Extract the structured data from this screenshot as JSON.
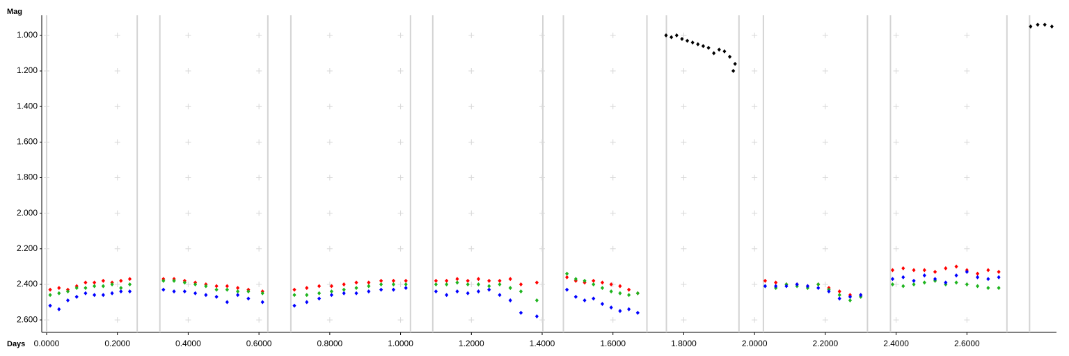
{
  "chart_data": {
    "type": "scatter",
    "x_label": "Days",
    "y_label": "Mag",
    "xlim": [
      -0.0137,
      2.853
    ],
    "ylim": [
      0.887,
      2.67
    ],
    "y_inverted": true,
    "grid": true,
    "xticks": [
      {
        "value": 0,
        "label": "0.0000"
      },
      {
        "value": 0.2,
        "label": "0.2000"
      },
      {
        "value": 0.4,
        "label": "0.4000"
      },
      {
        "value": 0.6,
        "label": "0.6000"
      },
      {
        "value": 0.8,
        "label": "0.8000"
      },
      {
        "value": 1.0,
        "label": "1.0000"
      },
      {
        "value": 1.2,
        "label": "1.2000"
      },
      {
        "value": 1.4,
        "label": "1.4000"
      },
      {
        "value": 1.6,
        "label": "1.6000"
      },
      {
        "value": 1.8,
        "label": "1.8000"
      },
      {
        "value": 2.0,
        "label": "2.0000"
      },
      {
        "value": 2.2,
        "label": "2.2000"
      },
      {
        "value": 2.4,
        "label": "2.4000"
      },
      {
        "value": 2.6,
        "label": "2.6000"
      }
    ],
    "yticks": [
      {
        "value": 1.0,
        "label": "1.000"
      },
      {
        "value": 1.2,
        "label": "1.200"
      },
      {
        "value": 1.4,
        "label": "1.400"
      },
      {
        "value": 1.6,
        "label": "1.600"
      },
      {
        "value": 1.8,
        "label": "1.800"
      },
      {
        "value": 2.0,
        "label": "2.000"
      },
      {
        "value": 2.2,
        "label": "2.200"
      },
      {
        "value": 2.4,
        "label": "2.400"
      },
      {
        "value": 2.6,
        "label": "2.600"
      }
    ],
    "vlines": [
      0,
      0.256,
      0.32,
      0.625,
      0.69,
      1.028,
      1.091,
      1.402,
      1.46,
      1.696,
      1.751,
      1.956,
      2.025,
      2.319,
      2.384,
      2.713,
      2.777
    ],
    "vline_color": "#d3d3d3",
    "series": [
      {
        "color": "#ff0000",
        "x": [
          0.01,
          0.035,
          0.06,
          0.085,
          0.11,
          0.135,
          0.16,
          0.185,
          0.21,
          0.235,
          0.33,
          0.36,
          0.39,
          0.42,
          0.45,
          0.48,
          0.51,
          0.54,
          0.57,
          0.61,
          0.7,
          0.735,
          0.77,
          0.805,
          0.84,
          0.875,
          0.91,
          0.945,
          0.98,
          1.015,
          1.1,
          1.13,
          1.16,
          1.19,
          1.22,
          1.25,
          1.28,
          1.31,
          1.34,
          1.385,
          1.47,
          1.495,
          1.52,
          1.545,
          1.57,
          1.595,
          1.62,
          1.645,
          1.67,
          2.03,
          2.06,
          2.09,
          2.12,
          2.15,
          2.18,
          2.21,
          2.24,
          2.27,
          2.3,
          2.39,
          2.42,
          2.45,
          2.48,
          2.51,
          2.54,
          2.57,
          2.6,
          2.63,
          2.66,
          2.69
        ],
        "values": [
          2.43,
          2.42,
          2.43,
          2.41,
          2.39,
          2.39,
          2.38,
          2.39,
          2.38,
          2.37,
          2.37,
          2.37,
          2.38,
          2.39,
          2.4,
          2.41,
          2.41,
          2.42,
          2.43,
          2.44,
          2.43,
          2.42,
          2.41,
          2.41,
          2.4,
          2.39,
          2.39,
          2.38,
          2.38,
          2.38,
          2.38,
          2.38,
          2.37,
          2.38,
          2.37,
          2.38,
          2.38,
          2.37,
          2.4,
          2.39,
          2.36,
          2.38,
          2.39,
          2.38,
          2.39,
          2.4,
          2.41,
          2.43,
          2.45,
          2.38,
          2.39,
          2.4,
          2.4,
          2.41,
          2.4,
          2.42,
          2.44,
          2.46,
          2.46,
          2.32,
          2.31,
          2.32,
          2.32,
          2.33,
          2.31,
          2.3,
          2.32,
          2.34,
          2.32,
          2.33
        ]
      },
      {
        "color": "#1fb41f",
        "x": [
          0.01,
          0.035,
          0.06,
          0.085,
          0.11,
          0.135,
          0.16,
          0.185,
          0.21,
          0.235,
          0.33,
          0.36,
          0.39,
          0.42,
          0.45,
          0.48,
          0.51,
          0.54,
          0.57,
          0.61,
          0.7,
          0.735,
          0.77,
          0.805,
          0.84,
          0.875,
          0.91,
          0.945,
          0.98,
          1.015,
          1.1,
          1.13,
          1.16,
          1.19,
          1.22,
          1.25,
          1.28,
          1.31,
          1.34,
          1.385,
          1.47,
          1.495,
          1.52,
          1.545,
          1.57,
          1.595,
          1.62,
          1.645,
          1.67,
          2.03,
          2.06,
          2.09,
          2.12,
          2.15,
          2.18,
          2.21,
          2.24,
          2.27,
          2.3,
          2.39,
          2.42,
          2.45,
          2.48,
          2.51,
          2.54,
          2.57,
          2.6,
          2.63,
          2.66,
          2.69
        ],
        "values": [
          2.46,
          2.45,
          2.44,
          2.42,
          2.42,
          2.41,
          2.41,
          2.4,
          2.42,
          2.4,
          2.38,
          2.38,
          2.39,
          2.4,
          2.41,
          2.43,
          2.43,
          2.44,
          2.44,
          2.45,
          2.46,
          2.46,
          2.45,
          2.44,
          2.43,
          2.42,
          2.41,
          2.4,
          2.4,
          2.4,
          2.4,
          2.4,
          2.39,
          2.4,
          2.4,
          2.41,
          2.4,
          2.42,
          2.44,
          2.49,
          2.34,
          2.37,
          2.38,
          2.4,
          2.42,
          2.44,
          2.45,
          2.46,
          2.45,
          2.41,
          2.42,
          2.4,
          2.41,
          2.42,
          2.4,
          2.43,
          2.46,
          2.49,
          2.47,
          2.4,
          2.41,
          2.4,
          2.39,
          2.38,
          2.4,
          2.39,
          2.4,
          2.41,
          2.42,
          2.42
        ]
      },
      {
        "color": "#0000ff",
        "x": [
          0.01,
          0.035,
          0.06,
          0.085,
          0.11,
          0.135,
          0.16,
          0.185,
          0.21,
          0.235,
          0.33,
          0.36,
          0.39,
          0.42,
          0.45,
          0.48,
          0.51,
          0.54,
          0.57,
          0.61,
          0.7,
          0.735,
          0.77,
          0.805,
          0.84,
          0.875,
          0.91,
          0.945,
          0.98,
          1.015,
          1.1,
          1.13,
          1.16,
          1.19,
          1.22,
          1.25,
          1.28,
          1.31,
          1.34,
          1.385,
          1.47,
          1.495,
          1.52,
          1.545,
          1.57,
          1.595,
          1.62,
          1.645,
          1.67,
          2.03,
          2.06,
          2.09,
          2.12,
          2.15,
          2.18,
          2.21,
          2.24,
          2.27,
          2.3,
          2.39,
          2.42,
          2.45,
          2.48,
          2.51,
          2.54,
          2.57,
          2.6,
          2.63,
          2.66,
          2.69
        ],
        "values": [
          2.52,
          2.54,
          2.49,
          2.47,
          2.45,
          2.46,
          2.46,
          2.45,
          2.44,
          2.44,
          2.43,
          2.44,
          2.44,
          2.45,
          2.46,
          2.47,
          2.5,
          2.46,
          2.48,
          2.5,
          2.52,
          2.5,
          2.48,
          2.46,
          2.45,
          2.45,
          2.44,
          2.43,
          2.43,
          2.42,
          2.44,
          2.46,
          2.44,
          2.45,
          2.44,
          2.43,
          2.46,
          2.49,
          2.56,
          2.58,
          2.43,
          2.47,
          2.49,
          2.48,
          2.51,
          2.53,
          2.55,
          2.54,
          2.56,
          2.41,
          2.41,
          2.41,
          2.4,
          2.41,
          2.42,
          2.44,
          2.48,
          2.47,
          2.46,
          2.37,
          2.36,
          2.38,
          2.35,
          2.37,
          2.39,
          2.35,
          2.33,
          2.36,
          2.37,
          2.36
        ]
      },
      {
        "color": "#000000",
        "x": [
          1.75,
          1.765,
          1.78,
          1.795,
          1.81,
          1.825,
          1.84,
          1.855,
          1.87,
          1.885,
          1.9,
          1.915,
          1.93,
          1.94,
          1.945,
          2.78,
          2.8,
          2.82,
          2.84
        ],
        "values": [
          1.0,
          1.01,
          1.0,
          1.02,
          1.03,
          1.04,
          1.05,
          1.06,
          1.07,
          1.1,
          1.08,
          1.09,
          1.12,
          1.2,
          1.16,
          0.95,
          0.94,
          0.94,
          0.95
        ]
      }
    ]
  }
}
